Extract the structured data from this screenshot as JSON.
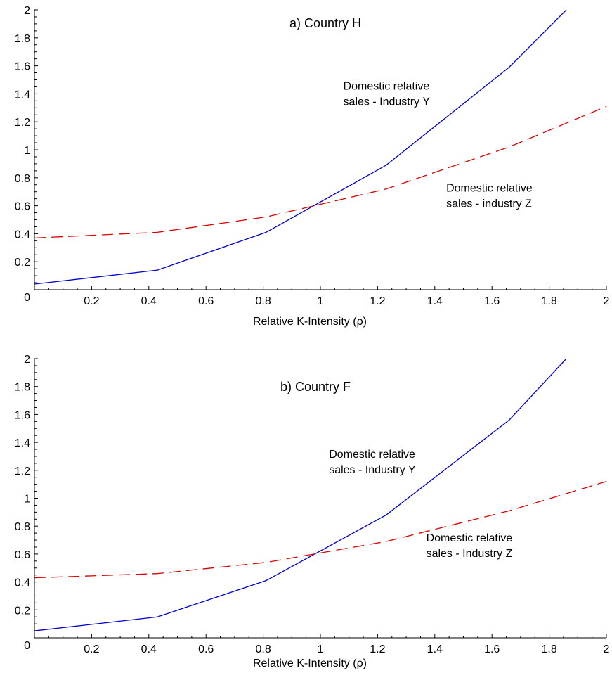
{
  "chart_data": [
    {
      "type": "line",
      "title": "a) Country H",
      "xlabel": "Relative K-Intensity (ρ)",
      "ylabel": "",
      "xlim": [
        0,
        2
      ],
      "ylim": [
        0,
        2
      ],
      "xticks": [
        "0.2",
        "0.4",
        "0.6",
        "0.8",
        "1",
        "1.2",
        "1.4",
        "1.6",
        "1.8",
        "2"
      ],
      "yticks": [
        "0",
        "0.2",
        "0.4",
        "0.6",
        "0.8",
        "1",
        "1.2",
        "1.4",
        "1.6",
        "1.8",
        "2"
      ],
      "grid": false,
      "series": [
        {
          "style": "solid",
          "color": "#0000cc",
          "x": [
            0.0,
            0.43,
            0.81,
            1.23,
            1.66,
            1.86
          ],
          "y": [
            0.04,
            0.14,
            0.41,
            0.89,
            1.59,
            2.0
          ]
        },
        {
          "style": "dashed",
          "color": "#dd0000",
          "x": [
            0.0,
            0.43,
            0.81,
            1.23,
            1.66,
            2.0
          ],
          "y": [
            0.37,
            0.41,
            0.52,
            0.72,
            1.02,
            1.31
          ]
        }
      ],
      "annotations": [
        {
          "lines": [
            "Domestic relative",
            "sales - Industry Y"
          ],
          "x": 1.08,
          "y": 1.43
        },
        {
          "lines": [
            "Domestic relative",
            "sales - industry Z"
          ],
          "x": 1.44,
          "y": 0.7
        }
      ]
    },
    {
      "type": "line",
      "title": "b) Country F",
      "xlabel": "Relative K-Intensity (ρ)",
      "ylabel": "",
      "xlim": [
        0,
        2
      ],
      "ylim": [
        0,
        2
      ],
      "xticks": [
        "0.2",
        "0.4",
        "0.6",
        "0.8",
        "1",
        "1.2",
        "1.4",
        "1.6",
        "1.8",
        "2"
      ],
      "yticks": [
        "0",
        "0.2",
        "0.4",
        "0.6",
        "0.8",
        "1",
        "1.2",
        "1.4",
        "1.6",
        "1.8",
        "2"
      ],
      "grid": false,
      "series": [
        {
          "style": "solid",
          "color": "#0000cc",
          "x": [
            0.0,
            0.43,
            0.81,
            1.23,
            1.66,
            1.86
          ],
          "y": [
            0.05,
            0.15,
            0.41,
            0.88,
            1.56,
            2.0
          ]
        },
        {
          "style": "dashed",
          "color": "#dd0000",
          "x": [
            0.0,
            0.43,
            0.81,
            1.23,
            1.66,
            2.0
          ],
          "y": [
            0.43,
            0.46,
            0.54,
            0.69,
            0.91,
            1.12
          ]
        }
      ],
      "annotations": [
        {
          "lines": [
            "Domestic relative",
            "sales - Industry Y"
          ],
          "x": 1.03,
          "y": 1.29
        },
        {
          "lines": [
            "Domestic relative",
            "sales - Industry Z"
          ],
          "x": 1.37,
          "y": 0.69
        }
      ]
    }
  ]
}
